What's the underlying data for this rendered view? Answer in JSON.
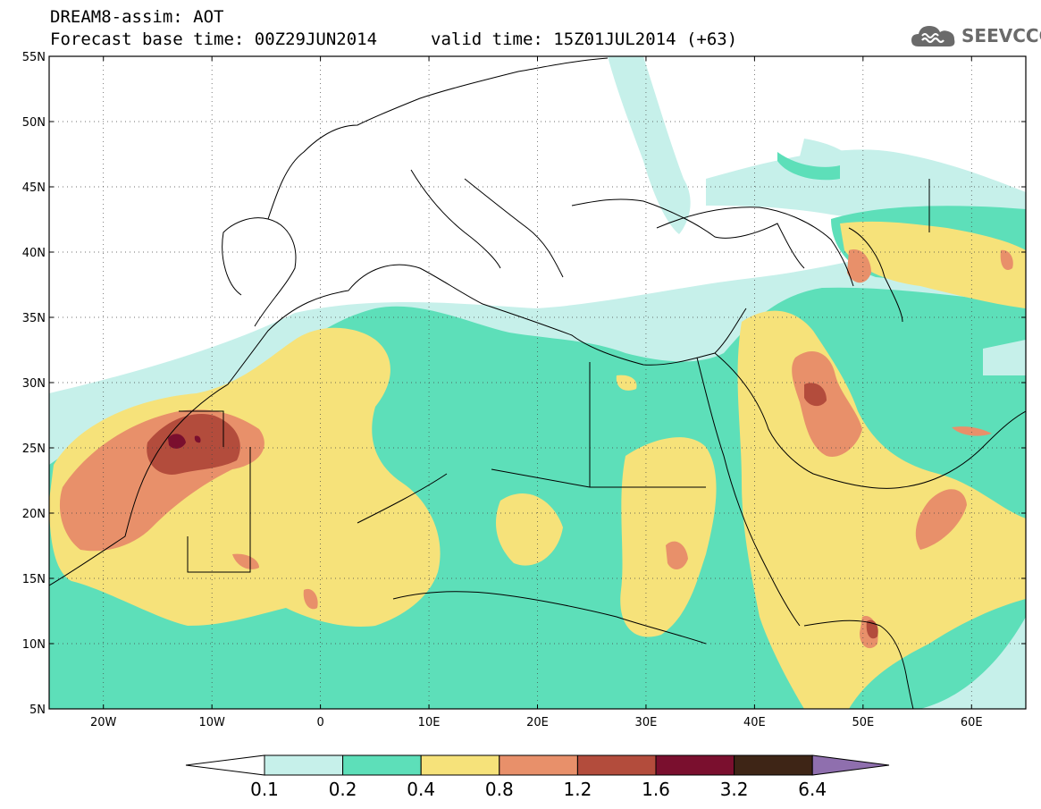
{
  "header": {
    "title_line1": "DREAM8-assim: AOT",
    "title_line2": "Forecast base time: 00Z29JUN2014",
    "valid_time": "valid time: 15Z01JUL2014 (+63)",
    "logo_text": "SEEVCCC",
    "logo_icon": "cloud-icon"
  },
  "map": {
    "lon_range": [
      -25,
      65
    ],
    "lat_range": [
      5,
      55
    ],
    "lat_ticks": [
      {
        "value": 55,
        "label": "55N"
      },
      {
        "value": 50,
        "label": "50N"
      },
      {
        "value": 45,
        "label": "45N"
      },
      {
        "value": 40,
        "label": "40N"
      },
      {
        "value": 35,
        "label": "35N"
      },
      {
        "value": 30,
        "label": "30N"
      },
      {
        "value": 25,
        "label": "25N"
      },
      {
        "value": 20,
        "label": "20N"
      },
      {
        "value": 15,
        "label": "15N"
      },
      {
        "value": 10,
        "label": "10N"
      },
      {
        "value": 5,
        "label": "5N"
      }
    ],
    "lon_ticks": [
      {
        "value": -20,
        "label": "20W"
      },
      {
        "value": -10,
        "label": "10W"
      },
      {
        "value": 0,
        "label": "0"
      },
      {
        "value": 10,
        "label": "10E"
      },
      {
        "value": 20,
        "label": "20E"
      },
      {
        "value": 30,
        "label": "30E"
      },
      {
        "value": 40,
        "label": "40E"
      },
      {
        "value": 50,
        "label": "50E"
      },
      {
        "value": 60,
        "label": "60E"
      }
    ],
    "grid": true
  },
  "colorbar": {
    "labels": [
      "0.1",
      "0.2",
      "0.4",
      "0.8",
      "1.2",
      "1.6",
      "3.2",
      "6.4"
    ],
    "colors": [
      "#ffffff",
      "#c6f0ea",
      "#5ddfb9",
      "#f6e27a",
      "#e8906a",
      "#b34c3c",
      "#7a0f2e",
      "#3e2516",
      "#8f6fae"
    ]
  }
}
